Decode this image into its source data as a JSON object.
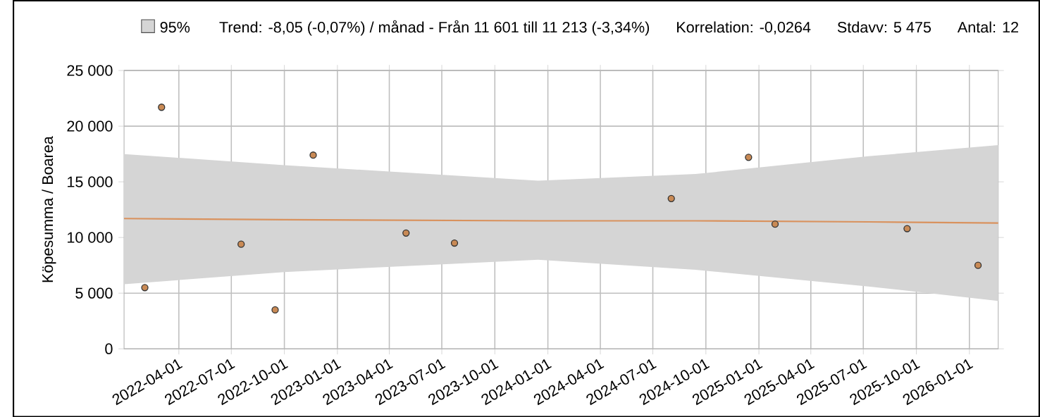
{
  "chart_data": {
    "type": "scatter",
    "annotations": [
      "Trend: -8,05 (-0,07%) / månad  -  Från 11 601 till 11 213 (-3,34%)",
      "Korrelation: -0,0264",
      "Stdavv: 5 475",
      "Antal: 12"
    ],
    "ylabel": "Köpesumma / Boarea",
    "series": [
      {
        "type": "line",
        "name": "95%",
        "color": "#d9925e",
        "x": [
          "2021-12-27",
          "2022-10-01",
          "2023-12-15",
          "2024-09-13",
          "2025-07-10",
          "2026-02-20"
        ],
        "values": [
          11700,
          11600,
          11500,
          11500,
          11400,
          11300
        ],
        "lower": [
          5800,
          6900,
          8000,
          7100,
          5600,
          4300
        ],
        "upper": [
          17500,
          16500,
          15100,
          15700,
          17300,
          18300
        ],
        "marker": "none"
      },
      {
        "color": "#c98a55",
        "marker": "circle",
        "x": [
          "2022-02-01",
          "2022-03-02",
          "2022-07-18",
          "2022-09-15",
          "2022-11-20",
          "2023-04-30",
          "2023-07-23",
          "2024-08-02",
          "2024-12-14",
          "2025-01-29",
          "2025-09-15",
          "2026-01-16"
        ],
        "values": [
          5500,
          21700,
          9400,
          3500,
          17400,
          10400,
          9500,
          13500,
          17200,
          11200,
          10800,
          7500
        ]
      }
    ],
    "xlim": [
      "2021-12-27",
      "2026-02-20"
    ],
    "xticks": [
      "2022-04-01",
      "2022-07-01",
      "2022-10-01",
      "2023-01-01",
      "2023-04-01",
      "2023-07-01",
      "2023-10-01",
      "2024-01-01",
      "2024-04-01",
      "2024-07-01",
      "2024-10-01",
      "2025-01-01",
      "2025-04-01",
      "2025-07-01",
      "2025-10-01",
      "2026-01-01"
    ],
    "ylim": [
      0,
      25000
    ],
    "yticks": [
      {
        "value": 0,
        "label": "0"
      },
      {
        "value": 5000,
        "label": "5 000"
      },
      {
        "value": 10000,
        "label": "10 000"
      },
      {
        "value": 15000,
        "label": "15 000"
      },
      {
        "value": 20000,
        "label": "20 000"
      },
      {
        "value": 25000,
        "label": "25 000"
      }
    ],
    "grid": true,
    "legend": "top left"
  }
}
